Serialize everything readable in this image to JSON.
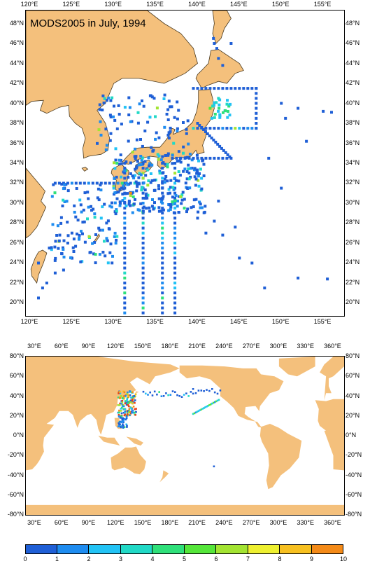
{
  "regional_map": {
    "title": "MODS2005 in July, 1994",
    "lon_ticks": [
      "120°E",
      "125°E",
      "130°E",
      "135°E",
      "140°E",
      "145°E",
      "150°E",
      "155°E"
    ],
    "lat_ticks": [
      "48°N",
      "46°N",
      "44°N",
      "42°N",
      "40°N",
      "38°N",
      "36°N",
      "34°N",
      "32°N",
      "30°N",
      "28°N",
      "26°N",
      "24°N",
      "22°N",
      "20°N"
    ],
    "lon_range": [
      119.5,
      157.5
    ],
    "lat_range": [
      18.7,
      49.3
    ],
    "colors": {
      "land": "#f4c07c",
      "coast": "#4a3a20",
      "ocean": "#ffffff"
    }
  },
  "global_map": {
    "lon_ticks": [
      "30°E",
      "60°E",
      "90°E",
      "120°E",
      "150°E",
      "180°E",
      "210°E",
      "240°E",
      "270°E",
      "300°E",
      "330°E",
      "360°E"
    ],
    "lat_ticks": [
      "80°N",
      "60°N",
      "40°N",
      "20°N",
      "0°N",
      "-20°N",
      "-40°N",
      "-60°N",
      "-80°N"
    ],
    "lon_range": [
      20,
      372
    ],
    "lat_range": [
      -80,
      80
    ],
    "colors": {
      "land": "#f4c07c",
      "ocean": "#ffffff"
    }
  },
  "colorbar": {
    "labels": [
      "0",
      "1",
      "2",
      "3",
      "4",
      "5",
      "6",
      "7",
      "8",
      "9",
      "10"
    ],
    "colors": [
      "#1f5fd6",
      "#1e8cf0",
      "#22c3f5",
      "#21d9c6",
      "#2fe07a",
      "#55e63a",
      "#a3e432",
      "#eef030",
      "#f7c020",
      "#f48a18",
      "#e8401a"
    ]
  }
}
